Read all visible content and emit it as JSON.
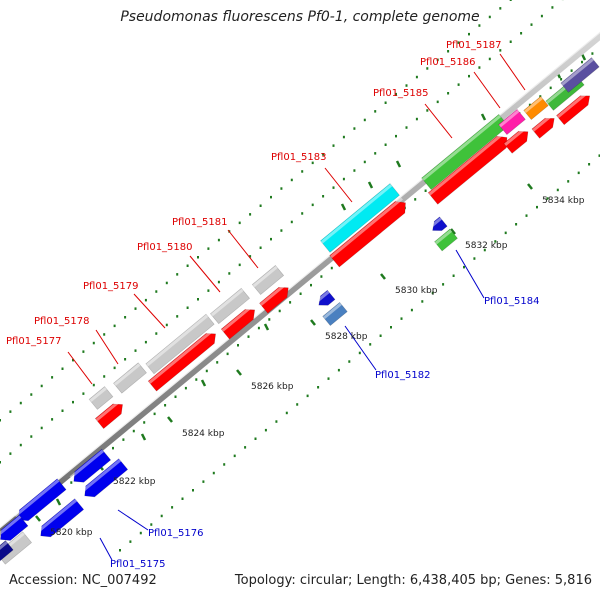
{
  "title": "Pseudomonas fluorescens Pf0-1, complete genome",
  "footer": {
    "accession": "Accession: NC_007492",
    "topology": "Topology: circular; Length: 6,438,405 bp; Genes: 5,816"
  },
  "colors": {
    "label_top": "#dd0000",
    "label_bottom": "#0000cc",
    "tick": "#1f7a1f",
    "backbone": "#8c8c8c"
  },
  "scale_labels": [
    {
      "text": "5820 kbp"
    },
    {
      "text": "5822 kbp"
    },
    {
      "text": "5824 kbp"
    },
    {
      "text": "5826 kbp"
    },
    {
      "text": "5828 kbp"
    },
    {
      "text": "5830 kbp"
    },
    {
      "text": "5832 kbp"
    },
    {
      "text": "5834 kbp"
    }
  ],
  "gene_labels": [
    {
      "text": "Pfl01_5175",
      "strand": "bottom"
    },
    {
      "text": "Pfl01_5176",
      "strand": "bottom"
    },
    {
      "text": "Pfl01_5177",
      "strand": "top"
    },
    {
      "text": "Pfl01_5178",
      "strand": "top"
    },
    {
      "text": "Pfl01_5179",
      "strand": "top"
    },
    {
      "text": "Pfl01_5180",
      "strand": "top"
    },
    {
      "text": "Pfl01_5181",
      "strand": "top"
    },
    {
      "text": "Pfl01_5182",
      "strand": "bottom"
    },
    {
      "text": "Pfl01_5183",
      "strand": "top"
    },
    {
      "text": "Pfl01_5184",
      "strand": "bottom"
    },
    {
      "text": "Pfl01_5185",
      "strand": "top"
    },
    {
      "text": "Pfl01_5186",
      "strand": "top"
    },
    {
      "text": "Pfl01_5187",
      "strand": "top"
    }
  ]
}
